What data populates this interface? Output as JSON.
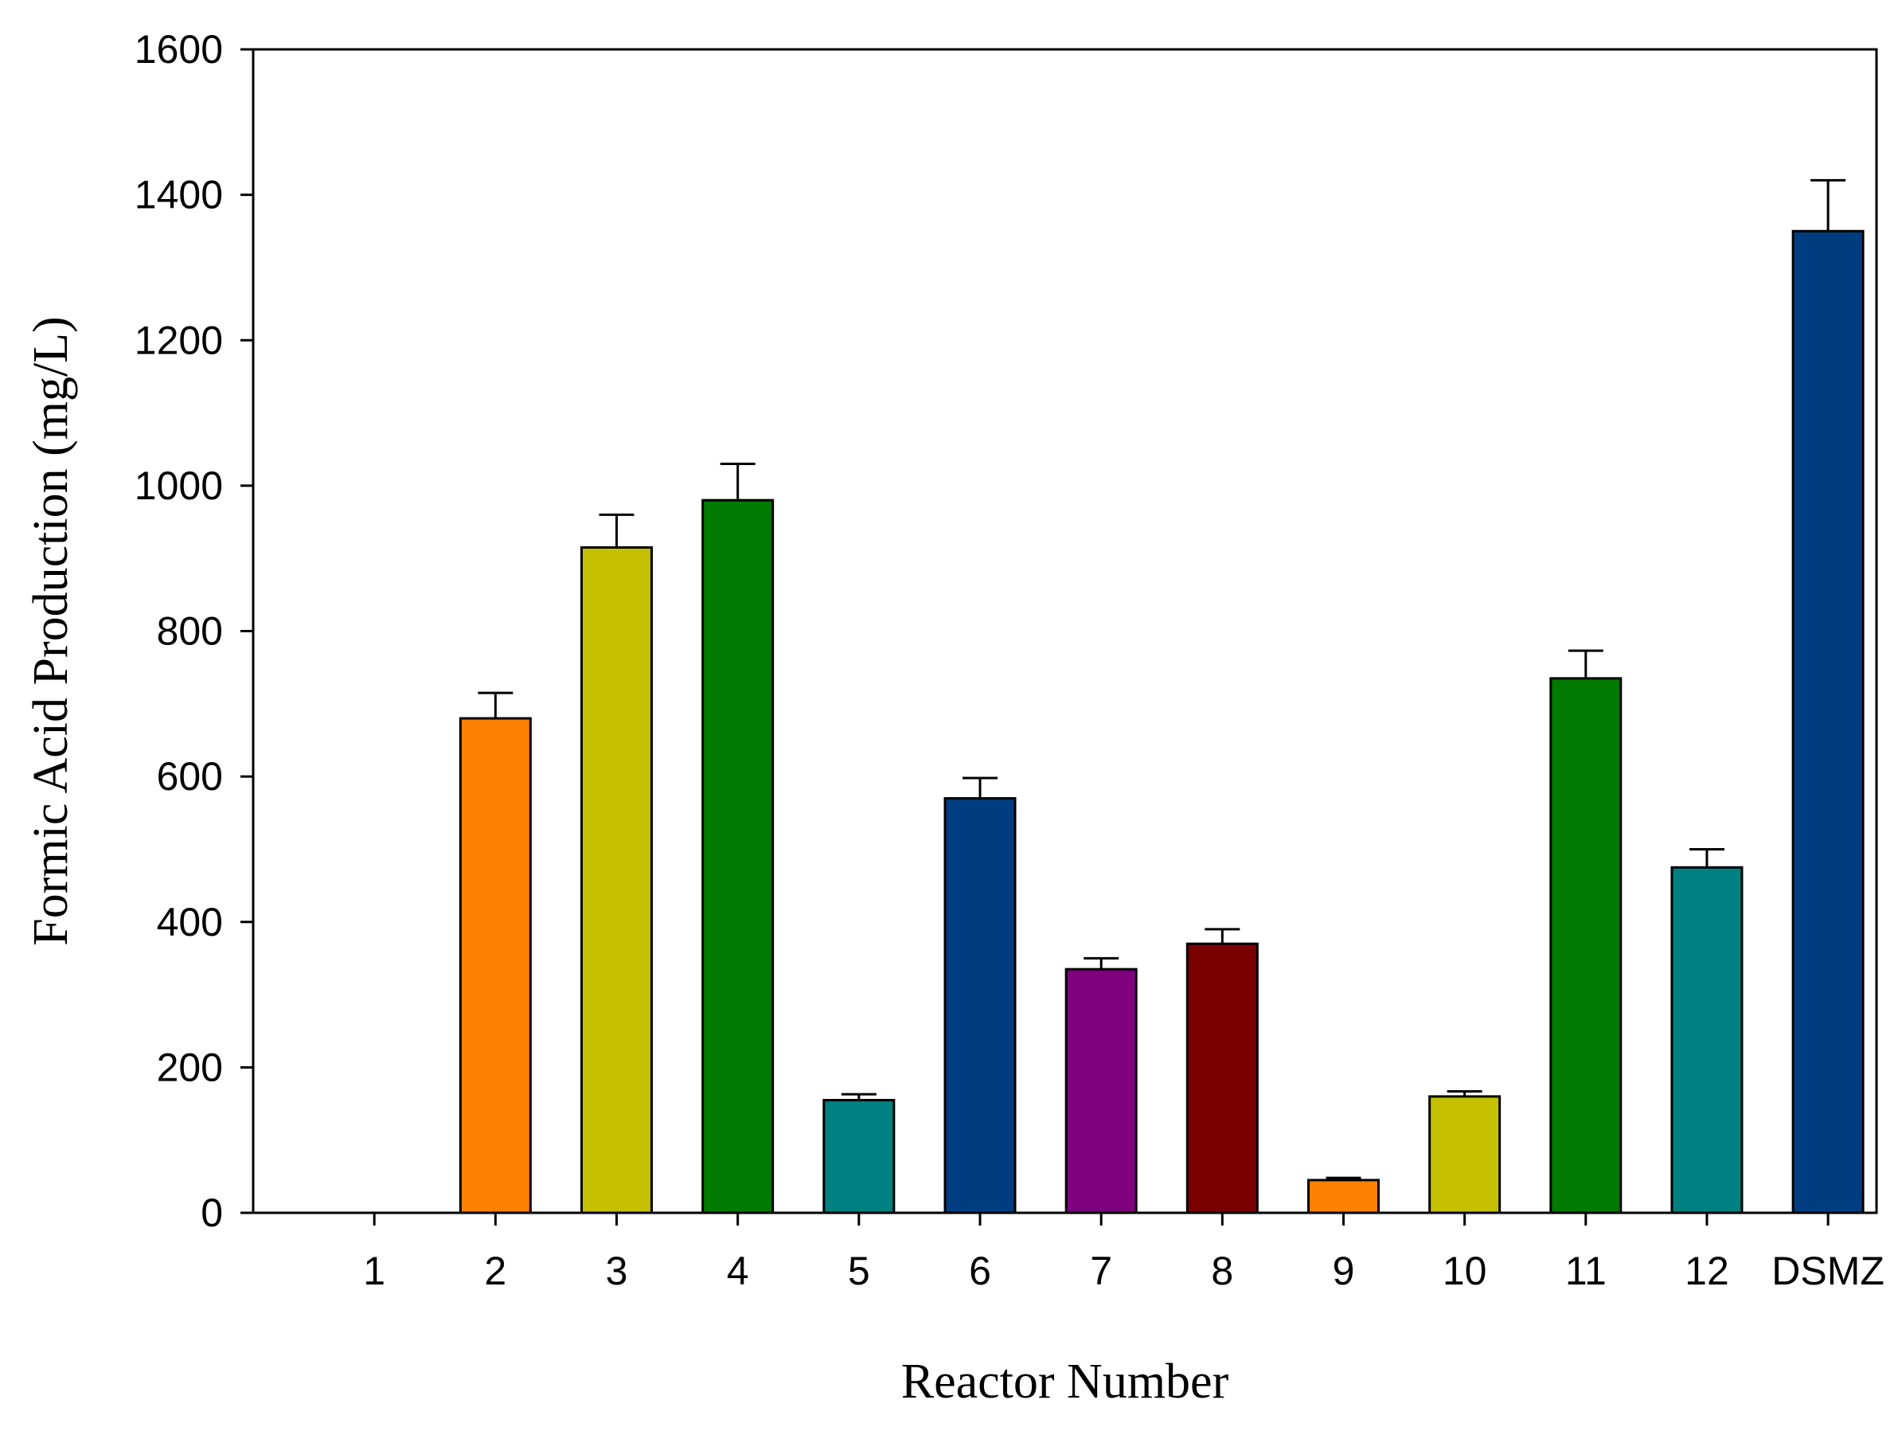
{
  "chart_data": {
    "type": "bar",
    "title": "",
    "xlabel": "Reactor Number",
    "ylabel": "Formic Acid Production (mg/L)",
    "categories": [
      "1",
      "2",
      "3",
      "4",
      "5",
      "6",
      "7",
      "8",
      "9",
      "10",
      "11",
      "12",
      "DSMZ"
    ],
    "values": [
      0,
      680,
      915,
      980,
      155,
      570,
      335,
      370,
      45,
      160,
      735,
      475,
      1350
    ],
    "error_upper": [
      0,
      35,
      45,
      50,
      8,
      28,
      15,
      20,
      3,
      7,
      38,
      25,
      70
    ],
    "colors": [
      "#FF8000",
      "#FF8000",
      "#C4C000",
      "#007A00",
      "#008080",
      "#003D80",
      "#7F007F",
      "#7A0000",
      "#FF8000",
      "#C4C000",
      "#007A00",
      "#008080",
      "#003D80"
    ],
    "ylim": [
      0,
      1600
    ],
    "yticks": [
      0,
      200,
      400,
      600,
      800,
      1000,
      1200,
      1400,
      1600
    ],
    "grid": false,
    "legend": "none"
  }
}
